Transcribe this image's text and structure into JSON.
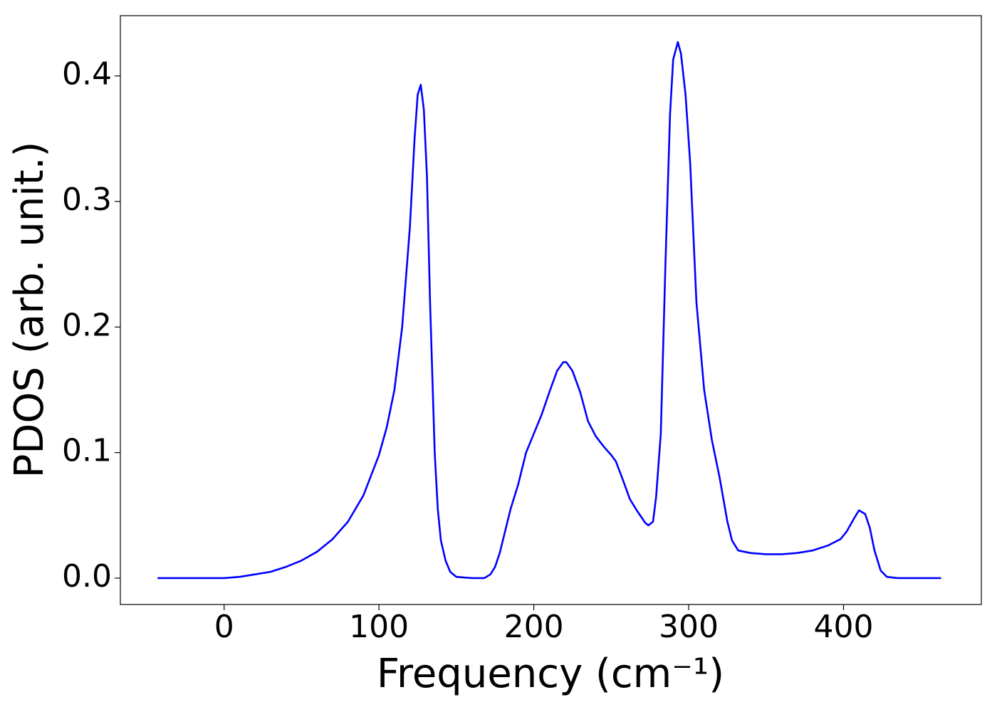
{
  "chart_data": {
    "type": "line",
    "x_label": "Frequency (cm⁻¹)",
    "y_label": "PDOS (arb. unit.)",
    "xlim": [
      -67,
      489
    ],
    "xticks": [
      0,
      100,
      200,
      300,
      400
    ],
    "ylim": [
      -0.021,
      0.448
    ],
    "yticks": [
      {
        "value": 0,
        "label": "0.0"
      },
      0.1,
      0.2,
      0.3,
      0.4
    ],
    "grid": false,
    "series": [
      {
        "color": "#0000ff",
        "x": [
          -43,
          -20,
          0,
          10,
          20,
          30,
          40,
          50,
          60,
          70,
          80,
          90,
          100,
          105,
          110,
          115,
          120,
          123,
          125,
          127,
          129,
          131,
          133,
          136,
          138,
          140,
          143,
          146,
          150,
          160,
          168,
          172,
          175,
          178,
          182,
          185,
          190,
          195,
          200,
          205,
          210,
          215,
          219,
          221,
          225,
          230,
          235,
          240,
          245,
          250,
          253,
          257,
          262,
          267,
          272,
          274,
          277,
          279,
          282,
          285,
          288,
          290,
          293,
          295,
          298,
          301,
          305,
          310,
          315,
          320,
          325,
          328,
          332,
          340,
          350,
          360,
          370,
          380,
          390,
          398,
          402,
          407,
          410,
          414,
          417,
          420,
          424,
          428,
          435,
          463
        ],
        "values": [
          0,
          0,
          0,
          0.001,
          0.003,
          0.005,
          0.009,
          0.014,
          0.021,
          0.031,
          0.045,
          0.066,
          0.098,
          0.12,
          0.15,
          0.2,
          0.28,
          0.35,
          0.385,
          0.393,
          0.373,
          0.32,
          0.22,
          0.1,
          0.055,
          0.03,
          0.014,
          0.005,
          0.001,
          0,
          0,
          0.003,
          0.009,
          0.02,
          0.04,
          0.055,
          0.075,
          0.1,
          0.115,
          0.13,
          0.148,
          0.165,
          0.172,
          0.172,
          0.165,
          0.148,
          0.125,
          0.113,
          0.105,
          0.098,
          0.093,
          0.08,
          0.063,
          0.053,
          0.044,
          0.042,
          0.045,
          0.065,
          0.115,
          0.25,
          0.37,
          0.413,
          0.427,
          0.418,
          0.385,
          0.33,
          0.22,
          0.15,
          0.11,
          0.08,
          0.045,
          0.03,
          0.022,
          0.02,
          0.019,
          0.019,
          0.02,
          0.022,
          0.026,
          0.031,
          0.037,
          0.048,
          0.054,
          0.051,
          0.04,
          0.022,
          0.006,
          0.001,
          0,
          0
        ]
      }
    ]
  }
}
